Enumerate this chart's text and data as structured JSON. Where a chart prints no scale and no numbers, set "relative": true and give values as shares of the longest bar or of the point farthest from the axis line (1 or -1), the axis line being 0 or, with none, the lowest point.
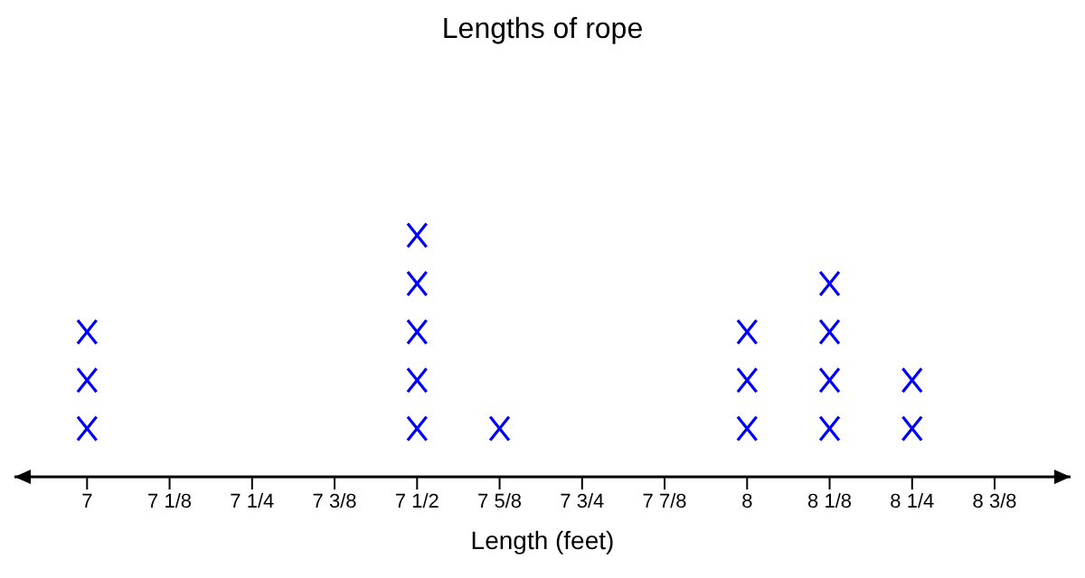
{
  "chart_data": {
    "type": "scatter",
    "title": "Lengths of rope",
    "xlabel": "Length (feet)",
    "x": [
      7,
      7,
      7,
      7.5,
      7.5,
      7.5,
      7.5,
      7.5,
      7.625,
      8,
      8,
      8,
      8.125,
      8.125,
      8.125,
      8.125,
      8.25,
      8.25
    ],
    "series": [
      {
        "color": "#0000ff",
        "values": [
          0.2,
          0.4,
          0.6,
          0.2,
          0.4,
          0.6,
          0.8,
          1,
          0.2,
          0.2,
          0.4,
          0.6,
          0.2,
          0.4,
          0.6,
          0.8,
          0.2,
          0.4
        ]
      }
    ],
    "relative": true,
    "xlim": [
      6.89,
      8.49
    ],
    "xticks": [
      {
        "value": 7,
        "label": "7"
      },
      {
        "value": 7.125,
        "label": "7 1/8"
      },
      {
        "value": 7.25,
        "label": "7 1/4"
      },
      {
        "value": 7.375,
        "label": "7 3/8"
      },
      {
        "value": 7.5,
        "label": "7 1/2"
      },
      {
        "value": 7.625,
        "label": "7 5/8"
      },
      {
        "value": 7.75,
        "label": "7 3/4"
      },
      {
        "value": 7.875,
        "label": "7 7/8"
      },
      {
        "value": 8,
        "label": "8"
      },
      {
        "value": 8.125,
        "label": "8 1/8"
      },
      {
        "value": 8.25,
        "label": "8 1/4"
      },
      {
        "value": 8.375,
        "label": "8 3/8"
      }
    ],
    "tick_labels": "x",
    "marker": "cross"
  }
}
